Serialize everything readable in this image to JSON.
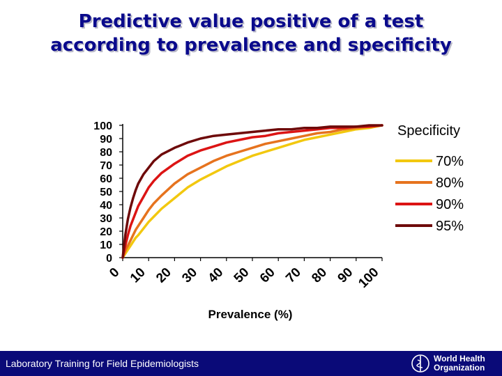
{
  "slide": {
    "title_line1": "Predictive value positive of a test",
    "title_line2": "according to prevalence and specificity"
  },
  "footer": {
    "text": "Laboratory Training for Field Epidemiologists",
    "org_line1": "World Health",
    "org_line2": "Organization"
  },
  "colors": {
    "title": "#0a0a8c",
    "footer_bg": "#0a0a78"
  },
  "chart_data": {
    "type": "line",
    "title": "",
    "xlabel": "Prevalence  (%)",
    "ylabel": "",
    "xlim": [
      0,
      100
    ],
    "ylim": [
      0,
      100
    ],
    "x_ticks": [
      0,
      10,
      20,
      30,
      40,
      50,
      60,
      70,
      80,
      90,
      100
    ],
    "y_ticks": [
      0,
      10,
      20,
      30,
      40,
      50,
      60,
      70,
      80,
      90,
      100
    ],
    "grid": false,
    "legend_title": "Specificity",
    "legend_position": "right",
    "x": [
      0,
      1,
      2,
      3,
      4,
      5,
      6,
      8,
      10,
      12,
      15,
      20,
      25,
      30,
      35,
      40,
      45,
      50,
      55,
      60,
      65,
      70,
      75,
      80,
      85,
      90,
      95,
      100
    ],
    "series": [
      {
        "name": "70%",
        "color": "#f2c80f",
        "values": [
          0,
          3,
          6,
          9,
          12,
          15,
          17,
          22,
          27,
          31,
          37,
          45,
          53,
          59,
          64,
          69,
          73,
          77,
          80,
          83,
          86,
          89,
          91,
          93,
          95,
          97,
          98,
          100
        ]
      },
      {
        "name": "80%",
        "color": "#e6731e",
        "values": [
          0,
          5,
          9,
          13,
          17,
          21,
          24,
          30,
          36,
          41,
          47,
          56,
          63,
          68,
          73,
          77,
          80,
          83,
          86,
          88,
          90,
          92,
          94,
          95,
          97,
          98,
          99,
          100
        ]
      },
      {
        "name": "90%",
        "color": "#dc1414",
        "values": [
          0,
          9,
          17,
          24,
          29,
          34,
          39,
          46,
          53,
          58,
          64,
          71,
          77,
          81,
          84,
          87,
          89,
          91,
          92,
          94,
          95,
          96,
          97,
          98,
          98,
          99,
          99,
          100
        ]
      },
      {
        "name": "95%",
        "color": "#6e0a0a",
        "values": [
          0,
          17,
          29,
          38,
          45,
          51,
          56,
          63,
          68,
          73,
          78,
          83,
          87,
          90,
          92,
          93,
          94,
          95,
          96,
          97,
          97,
          98,
          98,
          99,
          99,
          99,
          100,
          100
        ]
      }
    ]
  }
}
